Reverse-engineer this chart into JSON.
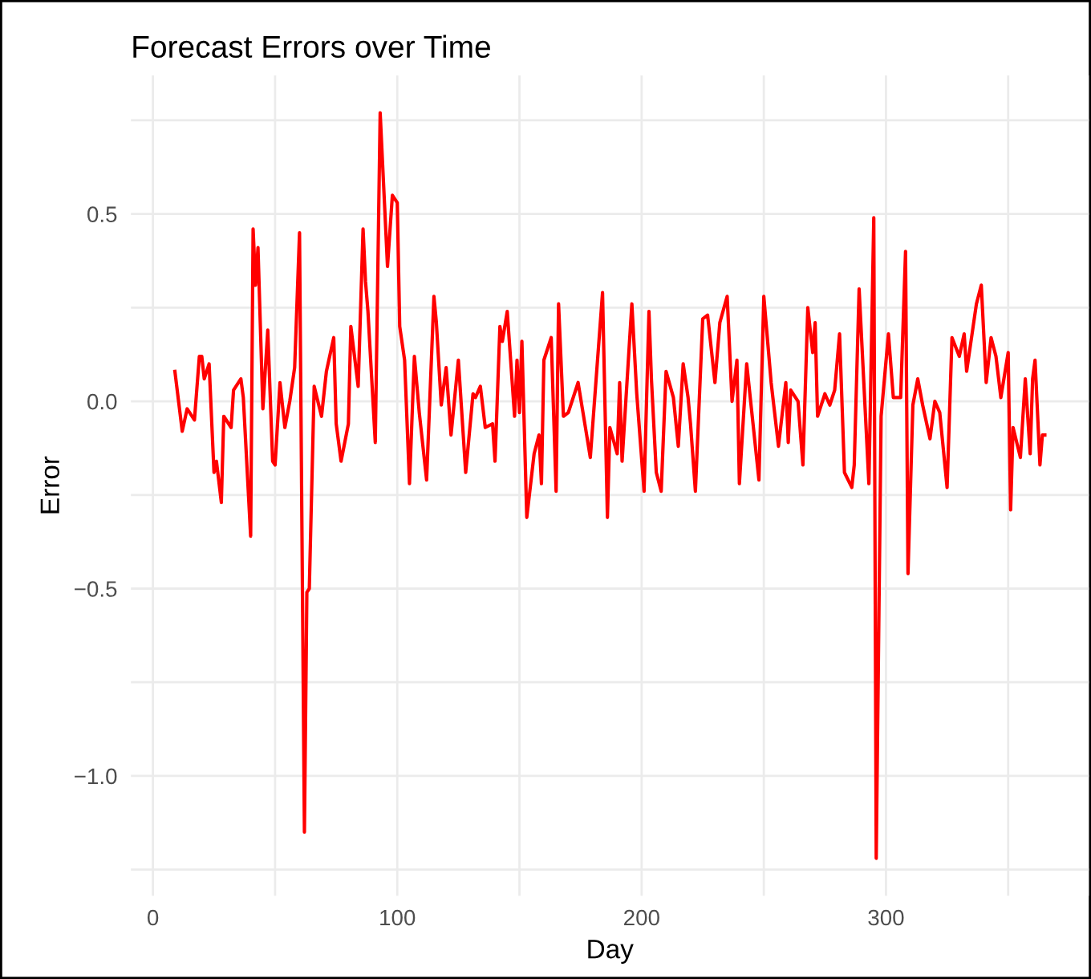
{
  "chart_data": {
    "type": "line",
    "title": "Forecast Errors over Time",
    "xlabel": "Day",
    "ylabel": "Error",
    "x": [
      9,
      12,
      14,
      17,
      19,
      20,
      21,
      23,
      25,
      26,
      28,
      29,
      32,
      33,
      36,
      37,
      40,
      41,
      42,
      43,
      45,
      47,
      49,
      50,
      52,
      54,
      56,
      58,
      60,
      62,
      63,
      64,
      66,
      69,
      71,
      74,
      75,
      77,
      80,
      81,
      84,
      86,
      87,
      88,
      91,
      93,
      96,
      98,
      100,
      101,
      103,
      105,
      107,
      109,
      112,
      115,
      116,
      118,
      120,
      122,
      125,
      128,
      131,
      132,
      134,
      136,
      139,
      140,
      142,
      143,
      145,
      148,
      149,
      150,
      151,
      153,
      156,
      158,
      159,
      160,
      163,
      165,
      166,
      168,
      170,
      174,
      177,
      179,
      184,
      186,
      187,
      190,
      191,
      192,
      196,
      198,
      201,
      203,
      204,
      206,
      208,
      210,
      213,
      215,
      217,
      219,
      220,
      222,
      225,
      227,
      230,
      232,
      235,
      237,
      239,
      240,
      243,
      248,
      250,
      253,
      256,
      259,
      260,
      261,
      264,
      266,
      268,
      270,
      271,
      272,
      275,
      277,
      279,
      281,
      283,
      286,
      287,
      289,
      291,
      293,
      295,
      296,
      298,
      301,
      303,
      306,
      308,
      309,
      311,
      313,
      315,
      318,
      320,
      322,
      325,
      327,
      330,
      332,
      333,
      337,
      339,
      341,
      343,
      345,
      347,
      350,
      351,
      352,
      355,
      357,
      359,
      360,
      361,
      363,
      364,
      365
    ],
    "series": [
      {
        "color": "#ff0000",
        "values": [
          0.08,
          -0.08,
          -0.02,
          -0.05,
          0.12,
          0.12,
          0.06,
          0.1,
          -0.19,
          -0.16,
          -0.27,
          -0.04,
          -0.07,
          0.03,
          0.06,
          0.01,
          -0.36,
          0.46,
          0.31,
          0.41,
          -0.02,
          0.19,
          -0.16,
          -0.17,
          0.05,
          -0.07,
          0.0,
          0.09,
          0.45,
          -1.15,
          -0.51,
          -0.5,
          0.04,
          -0.04,
          0.08,
          0.17,
          -0.06,
          -0.16,
          -0.06,
          0.2,
          0.04,
          0.46,
          0.32,
          0.24,
          -0.11,
          0.77,
          0.36,
          0.55,
          0.53,
          0.2,
          0.11,
          -0.22,
          0.12,
          -0.03,
          -0.21,
          0.28,
          0.21,
          -0.01,
          0.09,
          -0.09,
          0.11,
          -0.19,
          0.02,
          0.01,
          0.04,
          -0.07,
          -0.06,
          -0.16,
          0.2,
          0.16,
          0.24,
          -0.04,
          0.11,
          -0.03,
          0.16,
          -0.31,
          -0.14,
          -0.09,
          -0.22,
          0.11,
          0.17,
          -0.24,
          0.26,
          -0.04,
          -0.03,
          0.05,
          -0.07,
          -0.15,
          0.29,
          -0.31,
          -0.07,
          -0.14,
          0.05,
          -0.16,
          0.26,
          0.02,
          -0.24,
          0.24,
          0.06,
          -0.19,
          -0.24,
          0.08,
          0.01,
          -0.12,
          0.1,
          0.01,
          -0.06,
          -0.24,
          0.22,
          0.23,
          0.05,
          0.21,
          0.28,
          0.0,
          0.11,
          -0.22,
          0.1,
          -0.21,
          0.28,
          0.05,
          -0.12,
          0.05,
          -0.11,
          0.03,
          0.0,
          -0.17,
          0.25,
          0.13,
          0.21,
          -0.04,
          0.02,
          -0.01,
          0.03,
          0.18,
          -0.19,
          -0.23,
          -0.17,
          0.3,
          0.04,
          -0.22,
          0.49,
          -1.22,
          -0.04,
          0.18,
          0.01,
          0.01,
          0.4,
          -0.46,
          -0.01,
          0.06,
          -0.01,
          -0.1,
          0.0,
          -0.03,
          -0.23,
          0.17,
          0.12,
          0.18,
          0.08,
          0.26,
          0.31,
          0.05,
          0.17,
          0.12,
          0.01,
          0.13,
          -0.29,
          -0.07,
          -0.15,
          0.06,
          -0.14,
          0.06,
          0.11,
          -0.17,
          -0.09,
          -0.09
        ]
      }
    ],
    "xlim": [
      -9,
      383
    ],
    "ylim": [
      -1.32,
      0.87
    ],
    "xticks": [
      0,
      {
        "value": 50,
        "label": null
      },
      100,
      {
        "value": 150,
        "label": null
      },
      200,
      {
        "value": 250,
        "label": null
      },
      300,
      {
        "value": 350,
        "label": null
      }
    ],
    "yticks": [
      {
        "value": -1.25,
        "label": null
      },
      {
        "value": -1.0,
        "label": "−1.0"
      },
      {
        "value": -0.75,
        "label": null
      },
      {
        "value": -0.5,
        "label": "−0.5"
      },
      {
        "value": -0.25,
        "label": null
      },
      {
        "value": 0.0,
        "label": "0.0"
      },
      {
        "value": 0.25,
        "label": null
      },
      {
        "value": 0.5,
        "label": "0.5"
      },
      {
        "value": 0.75,
        "label": null
      }
    ],
    "grid": true,
    "line_style": "solid",
    "marker": "none"
  }
}
